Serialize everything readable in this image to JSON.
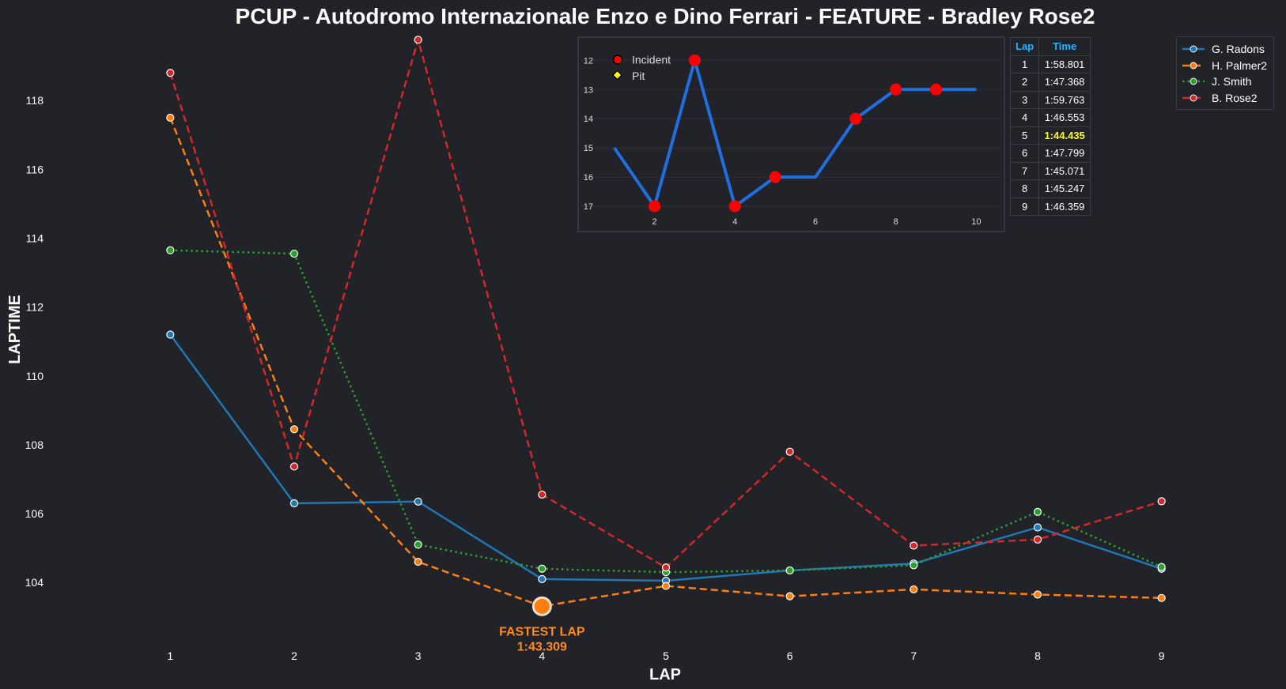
{
  "chart_data": {
    "type": "line",
    "title": "PCUP - Autodromo Internazionale Enzo e Dino Ferrari - FEATURE - Bradley Rose2",
    "xlabel": "LAP",
    "ylabel": "LAPTIME",
    "xlim": [
      0.5,
      9.5
    ],
    "ylim": [
      102.1,
      120.0
    ],
    "x": [
      1,
      2,
      3,
      4,
      5,
      6,
      7,
      8,
      9
    ],
    "x_ticks": [
      "1",
      "2",
      "3",
      "4",
      "5",
      "6",
      "7",
      "8",
      "9"
    ],
    "y_ticks": [
      104,
      106,
      108,
      110,
      112,
      114,
      116,
      118
    ],
    "grid": false,
    "legend_position": "top-right",
    "series": [
      {
        "name": "G. Radons",
        "color": "#1f77b4",
        "dash": "solid",
        "values": [
          111.2,
          106.3,
          106.35,
          104.1,
          104.05,
          104.35,
          104.55,
          105.6,
          104.4
        ]
      },
      {
        "name": "H. Palmer2",
        "color": "#ff7f0e",
        "dash": "dashed",
        "values": [
          117.5,
          108.45,
          104.6,
          103.309,
          103.9,
          103.6,
          103.8,
          103.65,
          103.55
        ]
      },
      {
        "name": "J. Smith",
        "color": "#2ca02c",
        "dash": "dotted",
        "values": [
          113.65,
          113.55,
          105.1,
          104.4,
          104.3,
          104.35,
          104.5,
          106.05,
          104.45
        ]
      },
      {
        "name": "B. Rose2",
        "color": "#d62728",
        "dash": "dashed",
        "values": [
          118.801,
          107.368,
          119.763,
          106.553,
          104.435,
          107.799,
          105.071,
          105.247,
          106.359
        ]
      }
    ],
    "annotation": {
      "series": "H. Palmer2",
      "x": 4,
      "y": 103.309,
      "line1": "FASTEST LAP",
      "line2": "1:43.309"
    },
    "inset": {
      "type": "line",
      "x": [
        1,
        2,
        3,
        4,
        5,
        6,
        7,
        8,
        9,
        10
      ],
      "positions": [
        15,
        17,
        12,
        17,
        16,
        16,
        14,
        13,
        13,
        13
      ],
      "incidents": [
        2,
        3,
        4,
        5,
        7,
        8,
        9
      ],
      "pits": [],
      "x_ticks": [
        "2",
        "4",
        "6",
        "8",
        "10"
      ],
      "y_ticks": [
        "12",
        "13",
        "14",
        "15",
        "16",
        "17"
      ],
      "xlim": [
        0.1,
        10.7
      ],
      "ylim_inverted": [
        11.45,
        17.35
      ],
      "line_color": "#1f6fe0",
      "marker_color": "#ff0000",
      "legend": [
        {
          "label": "Incident",
          "marker": "circle",
          "color": "#ff0000"
        },
        {
          "label": "Pit",
          "marker": "diamond",
          "color": "#ffff00"
        }
      ]
    },
    "table": {
      "headers": [
        "Lap",
        "Time"
      ],
      "rows": [
        [
          "1",
          "1:58.801"
        ],
        [
          "2",
          "1:47.368"
        ],
        [
          "3",
          "1:59.763"
        ],
        [
          "4",
          "1:46.553"
        ],
        [
          "5",
          "1:44.435"
        ],
        [
          "6",
          "1:47.799"
        ],
        [
          "7",
          "1:45.071"
        ],
        [
          "8",
          "1:45.247"
        ],
        [
          "9",
          "1:46.359"
        ]
      ],
      "best_row": 4,
      "best_color": "#ffff00"
    }
  }
}
